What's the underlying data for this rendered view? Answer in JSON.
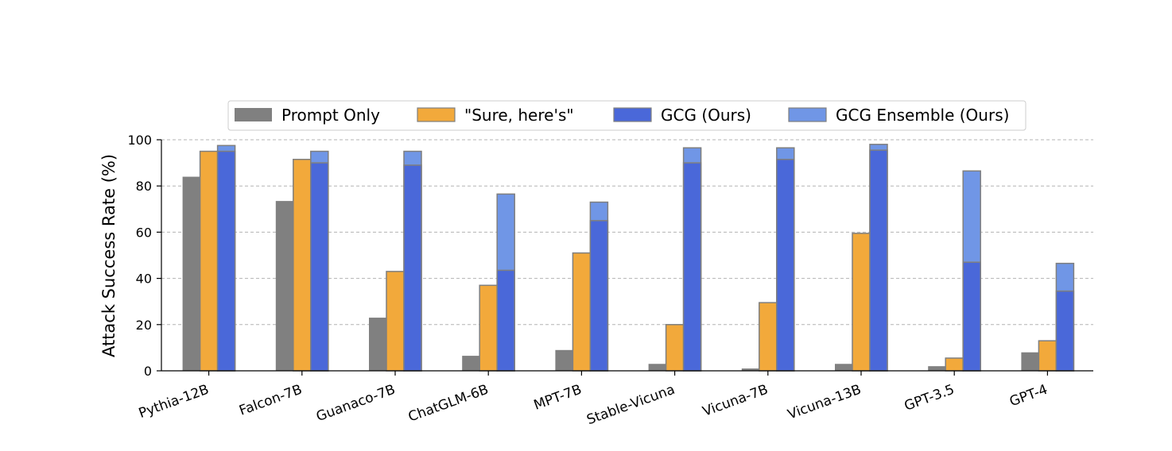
{
  "chart_data": {
    "type": "bar",
    "title": "",
    "xlabel": "",
    "ylabel": "Attack Success Rate (%)",
    "ylim": [
      0,
      100
    ],
    "yticks": [
      0,
      20,
      40,
      60,
      80,
      100
    ],
    "grid": "horizontal dashed",
    "legend_position": "top",
    "categories": [
      "Pythia-12B",
      "Falcon-7B",
      "Guanaco-7B",
      "ChatGLM-6B",
      "MPT-7B",
      "Stable-Vicuna",
      "Vicuna-7B",
      "Vicuna-13B",
      "GPT-3.5",
      "GPT-4"
    ],
    "series": [
      {
        "name": "Prompt Only",
        "color": "#808080",
        "values": [
          84,
          73.5,
          23,
          6.5,
          9,
          3,
          1,
          3,
          2,
          8
        ]
      },
      {
        "name": "\"Sure, here's\"",
        "color": "#f2a93b",
        "values": [
          95,
          91.5,
          43,
          37,
          51,
          20,
          29.5,
          59.5,
          5.5,
          13
        ]
      },
      {
        "name": "GCG (Ours)",
        "color": "#4a68d9",
        "values": [
          95,
          90,
          89,
          43.5,
          65,
          90,
          91.5,
          95.5,
          47,
          34.5
        ]
      },
      {
        "name": "GCG Ensemble (Ours)",
        "color": "#7096e6",
        "values": [
          97.5,
          95,
          95,
          76.5,
          73,
          96.5,
          96.5,
          98,
          86.5,
          46.5
        ],
        "stacked_on": "GCG (Ours)"
      }
    ]
  }
}
